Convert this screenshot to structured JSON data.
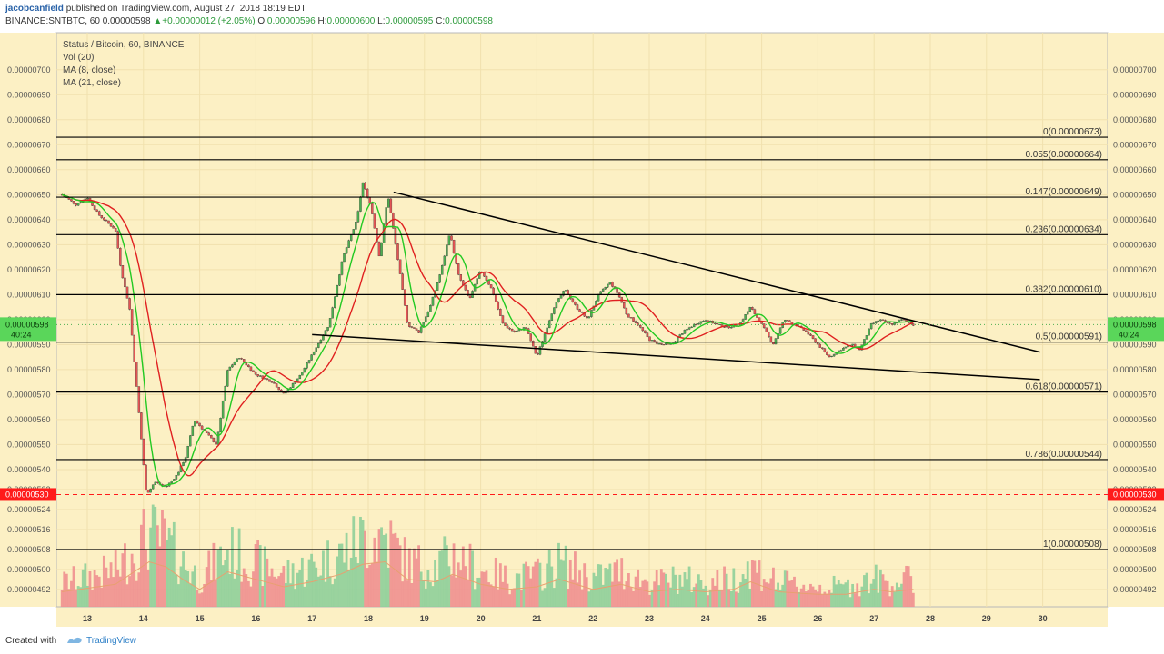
{
  "header": {
    "author": "jacobcanfield",
    "published": "published on TradingView.com, August 27, 2018 18:19 EDT",
    "symbol": "BINANCE:SNTBTC, 60",
    "open_price": "0.00000598",
    "change": "+0.00000012 (+2.05%)",
    "o_label": "O:",
    "o_value": "0.00000596",
    "h_label": "H:",
    "h_value": "0.00000600",
    "l_label": "L:",
    "l_value": "0.00000595",
    "c_label": "C:",
    "c_value": "0.00000598"
  },
  "legend": {
    "title": "Status / Bitcoin, 60, BINANCE",
    "vol": "Vol (20)",
    "ma8": "MA (8, close)",
    "ma21": "MA (21, close)"
  },
  "footer": {
    "created": "Created with",
    "brand": "TradingView"
  },
  "colors": {
    "background": "#fcf0c4",
    "up": "#4caf50",
    "down": "#e35454",
    "ma8": "#22c922",
    "ma21": "#e02020",
    "line": "#000000",
    "price_tag": "#5ad65a",
    "alert_tag": "#ff1a1a",
    "vol_up": "#8fcf9a",
    "vol_down": "#f09090"
  },
  "chart_data": {
    "type": "candlestick",
    "title": "Status / Bitcoin, 60, BINANCE",
    "ylim": [
      4.88e-06,
      7.09e-06
    ],
    "y_ticks": [
      "0.00000700",
      "0.00000690",
      "0.00000680",
      "0.00000670",
      "0.00000660",
      "0.00000650",
      "0.00000640",
      "0.00000630",
      "0.00000620",
      "0.00000610",
      "0.00000600",
      "0.00000590",
      "0.00000580",
      "0.00000570",
      "0.00000560",
      "0.00000550",
      "0.00000540",
      "0.00000532",
      "0.00000524",
      "0.00000516",
      "0.00000508",
      "0.00000500",
      "0.00000492"
    ],
    "x_ticks": [
      "13",
      "14",
      "15",
      "16",
      "17",
      "18",
      "19",
      "20",
      "21",
      "22",
      "23",
      "24",
      "25",
      "26",
      "27",
      "28",
      "29",
      "30"
    ],
    "current_price": {
      "value": "0.00000598",
      "countdown": "40:24"
    },
    "alert_level": {
      "value": "0.00000530"
    },
    "fib_levels": [
      {
        "label": "0(0.00000673)",
        "price": 6.73e-06
      },
      {
        "label": "0.055(0.00000664)",
        "price": 6.64e-06
      },
      {
        "label": "0.147(0.00000649)",
        "price": 6.49e-06
      },
      {
        "label": "0.236(0.00000634)",
        "price": 6.34e-06
      },
      {
        "label": "0.382(0.00000610)",
        "price": 6.1e-06
      },
      {
        "label": "0.5(0.00000591)",
        "price": 5.91e-06
      },
      {
        "label": "0.618(0.00000571)",
        "price": 5.71e-06
      },
      {
        "label": "0.786(0.00000544)",
        "price": 5.44e-06
      },
      {
        "label": "1(0.00000508)",
        "price": 5.08e-06
      }
    ],
    "trendlines": [
      {
        "name": "upper",
        "x1": 18.45,
        "y1": 6.51e-06,
        "x2": 29.95,
        "y2": 5.87e-06
      },
      {
        "name": "lower",
        "x1": 17.0,
        "y1": 5.94e-06,
        "x2": 29.95,
        "y2": 5.76e-06
      }
    ],
    "price_path": [
      [
        12.55,
        6.5e-06
      ],
      [
        12.8,
        6.46e-06
      ],
      [
        13.0,
        6.49e-06
      ],
      [
        13.2,
        6.42e-06
      ],
      [
        13.5,
        6.36e-06
      ],
      [
        13.6,
        6.2e-06
      ],
      [
        13.75,
        6.05e-06
      ],
      [
        13.85,
        5.8e-06
      ],
      [
        13.95,
        5.55e-06
      ],
      [
        14.05,
        5.3e-06
      ],
      [
        14.2,
        5.35e-06
      ],
      [
        14.4,
        5.33e-06
      ],
      [
        14.6,
        5.38e-06
      ],
      [
        14.75,
        5.45e-06
      ],
      [
        14.9,
        5.6e-06
      ],
      [
        15.1,
        5.55e-06
      ],
      [
        15.3,
        5.5e-06
      ],
      [
        15.5,
        5.8e-06
      ],
      [
        15.7,
        5.85e-06
      ],
      [
        16.0,
        5.78e-06
      ],
      [
        16.3,
        5.75e-06
      ],
      [
        16.5,
        5.7e-06
      ],
      [
        16.8,
        5.78e-06
      ],
      [
        17.1,
        5.9e-06
      ],
      [
        17.3,
        5.98e-06
      ],
      [
        17.55,
        6.25e-06
      ],
      [
        17.8,
        6.4e-06
      ],
      [
        17.9,
        6.55e-06
      ],
      [
        18.05,
        6.45e-06
      ],
      [
        18.2,
        6.25e-06
      ],
      [
        18.35,
        6.5e-06
      ],
      [
        18.5,
        6.28e-06
      ],
      [
        18.7,
        5.98e-06
      ],
      [
        18.9,
        5.95e-06
      ],
      [
        19.1,
        6.05e-06
      ],
      [
        19.3,
        6.2e-06
      ],
      [
        19.45,
        6.35e-06
      ],
      [
        19.6,
        6.18e-06
      ],
      [
        19.8,
        6.08e-06
      ],
      [
        20.0,
        6.2e-06
      ],
      [
        20.2,
        6.12e-06
      ],
      [
        20.4,
        5.98e-06
      ],
      [
        20.6,
        5.95e-06
      ],
      [
        20.8,
        5.97e-06
      ],
      [
        21.0,
        5.85e-06
      ],
      [
        21.15,
        5.95e-06
      ],
      [
        21.3,
        6.05e-06
      ],
      [
        21.5,
        6.12e-06
      ],
      [
        21.7,
        6.05e-06
      ],
      [
        21.9,
        6e-06
      ],
      [
        22.1,
        6.1e-06
      ],
      [
        22.3,
        6.15e-06
      ],
      [
        22.45,
        6.1e-06
      ],
      [
        22.6,
        6.02e-06
      ],
      [
        22.8,
        5.98e-06
      ],
      [
        23.0,
        5.92e-06
      ],
      [
        23.2,
        5.9e-06
      ],
      [
        23.4,
        5.9e-06
      ],
      [
        23.6,
        5.95e-06
      ],
      [
        23.8,
        5.98e-06
      ],
      [
        24.0,
        6e-06
      ],
      [
        24.2,
        5.98e-06
      ],
      [
        24.4,
        5.97e-06
      ],
      [
        24.6,
        5.98e-06
      ],
      [
        24.8,
        6.05e-06
      ],
      [
        25.0,
        5.98e-06
      ],
      [
        25.2,
        5.9e-06
      ],
      [
        25.4,
        6e-06
      ],
      [
        25.6,
        5.98e-06
      ],
      [
        25.8,
        5.95e-06
      ],
      [
        26.0,
        5.9e-06
      ],
      [
        26.2,
        5.85e-06
      ],
      [
        26.4,
        5.88e-06
      ],
      [
        26.6,
        5.9e-06
      ],
      [
        26.75,
        5.88e-06
      ],
      [
        26.95,
        5.98e-06
      ],
      [
        27.1,
        6e-06
      ],
      [
        27.3,
        5.98e-06
      ],
      [
        27.5,
        6e-06
      ],
      [
        27.7,
        5.98e-06
      ]
    ],
    "volume_profile": [
      [
        12.55,
        0.3
      ],
      [
        13.5,
        0.45
      ],
      [
        13.9,
        0.75
      ],
      [
        14.1,
        0.9
      ],
      [
        14.4,
        0.8
      ],
      [
        14.7,
        0.55
      ],
      [
        15.0,
        0.35
      ],
      [
        15.5,
        0.7
      ],
      [
        16.0,
        0.55
      ],
      [
        16.5,
        0.4
      ],
      [
        17.0,
        0.5
      ],
      [
        17.5,
        0.65
      ],
      [
        17.9,
        0.85
      ],
      [
        18.3,
        0.9
      ],
      [
        18.7,
        0.55
      ],
      [
        19.2,
        0.5
      ],
      [
        19.5,
        0.65
      ],
      [
        20.0,
        0.45
      ],
      [
        20.5,
        0.35
      ],
      [
        21.0,
        0.4
      ],
      [
        21.4,
        0.55
      ],
      [
        22.0,
        0.35
      ],
      [
        22.5,
        0.45
      ],
      [
        23.0,
        0.3
      ],
      [
        23.5,
        0.35
      ],
      [
        24.0,
        0.3
      ],
      [
        24.5,
        0.35
      ],
      [
        24.8,
        0.5
      ],
      [
        25.3,
        0.3
      ],
      [
        26.0,
        0.25
      ],
      [
        26.5,
        0.25
      ],
      [
        27.0,
        0.35
      ],
      [
        27.3,
        0.3
      ],
      [
        27.7,
        0.35
      ]
    ],
    "volume_ylim": [
      0,
      1
    ]
  }
}
